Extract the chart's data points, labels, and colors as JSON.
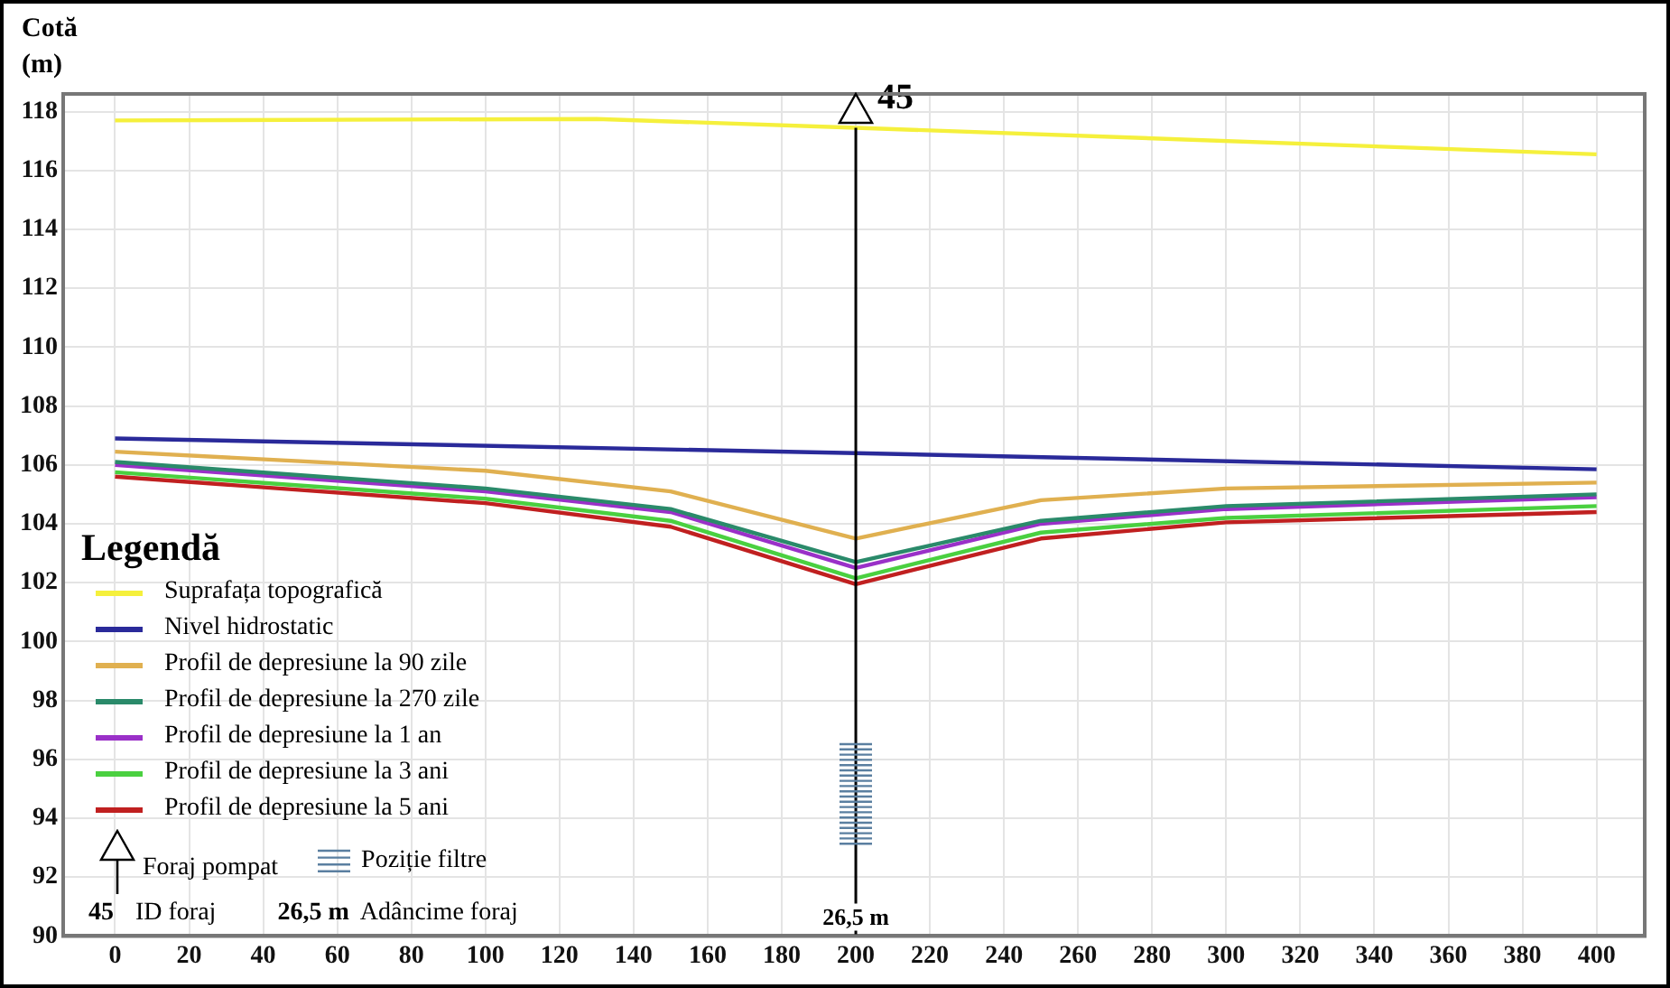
{
  "chart_data": {
    "type": "line",
    "ylabel": "Cotă (m)",
    "legend_title": "Legendă",
    "legend": "bottom left",
    "grid": true,
    "marker": "none",
    "line_style": "solid",
    "xlim": [
      -14,
      413
    ],
    "xticks": [
      0,
      20,
      40,
      60,
      80,
      100,
      120,
      140,
      160,
      180,
      200,
      220,
      240,
      260,
      280,
      300,
      320,
      340,
      360,
      380,
      400
    ],
    "ylim": [
      90,
      118.6
    ],
    "yticks": [
      90,
      92,
      94,
      96,
      98,
      100,
      102,
      104,
      106,
      108,
      110,
      112,
      114,
      116,
      118
    ],
    "ref_lines": [
      {
        "axis": "x",
        "value": 200,
        "color": "#000000"
      }
    ],
    "annotations": [
      {
        "text": "45",
        "x": 200,
        "y": 117.45
      },
      {
        "text": "26,5 m",
        "x": 200,
        "y": 90
      },
      "Foraj pompat",
      "Poziție filtre",
      "ID foraj",
      "Adâncime foraj"
    ],
    "series": [
      {
        "name": "Suprafața topografică",
        "color": "#f5f03c",
        "x": [
          0,
          130,
          200,
          400
        ],
        "values": [
          117.7,
          117.75,
          117.45,
          116.55
        ]
      },
      {
        "name": "Nivel hidrostatic",
        "color": "#2a2a9a",
        "x": [
          0,
          200,
          400
        ],
        "values": [
          106.9,
          106.4,
          105.85
        ]
      },
      {
        "name": "Profil de depresiune la 90 zile",
        "color": "#e0b050",
        "x": [
          0,
          100,
          150,
          200,
          250,
          300,
          400
        ],
        "values": [
          106.45,
          105.8,
          105.1,
          103.5,
          104.8,
          105.2,
          105.4
        ]
      },
      {
        "name": "Profil de depresiune la 270 zile",
        "color": "#2a8a6a",
        "x": [
          0,
          100,
          150,
          200,
          250,
          300,
          400
        ],
        "values": [
          106.1,
          105.2,
          104.5,
          102.7,
          104.1,
          104.6,
          105.0
        ]
      },
      {
        "name": "Profil de depresiune la 1 an",
        "color": "#9a30c8",
        "x": [
          0,
          100,
          150,
          200,
          250,
          300,
          400
        ],
        "values": [
          106.0,
          105.1,
          104.4,
          102.5,
          104.0,
          104.5,
          104.9
        ]
      },
      {
        "name": "Profil de depresiune la 3 ani",
        "color": "#4ad040",
        "x": [
          0,
          100,
          150,
          200,
          250,
          300,
          400
        ],
        "values": [
          105.75,
          104.85,
          104.1,
          102.15,
          103.7,
          104.2,
          104.6
        ]
      },
      {
        "name": "Profil de depresiune la 5 ani",
        "color": "#c02020",
        "x": [
          0,
          100,
          150,
          200,
          250,
          300,
          400
        ],
        "values": [
          105.6,
          104.7,
          103.9,
          101.95,
          103.5,
          104.05,
          104.4
        ]
      }
    ]
  }
}
